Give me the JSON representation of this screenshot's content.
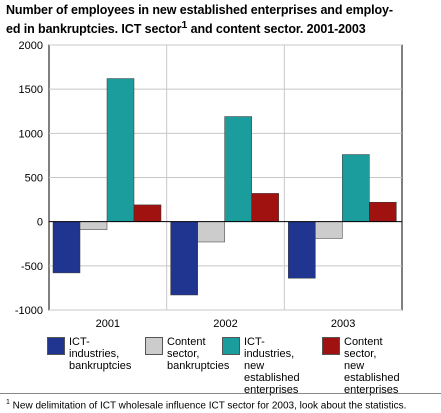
{
  "title": {
    "line1": "Number of employees in new established enterprises and employ-",
    "line2_pre": "ed in bankruptcies. ICT sector",
    "sup": "1",
    "line2_post": " and content sector. 2001-2003"
  },
  "chart_data": {
    "type": "bar",
    "categories": [
      "2001",
      "2002",
      "2003"
    ],
    "series": [
      {
        "name": "ICT-industries, bankruptcies",
        "values": [
          -580,
          -830,
          -640
        ],
        "color": "#1f3590"
      },
      {
        "name": "Content sector, bankruptcies",
        "values": [
          -90,
          -230,
          -190
        ],
        "color": "#cccccc"
      },
      {
        "name": "ICT-industries, new established enterprises",
        "values": [
          1620,
          1190,
          760
        ],
        "color": "#1c9d9d"
      },
      {
        "name": "Content sector, new established enterprises",
        "values": [
          190,
          320,
          220
        ],
        "color": "#a0120f"
      }
    ],
    "ylim": [
      -1000,
      2000
    ],
    "yticks": [
      "2000",
      "1500",
      "1000",
      "500",
      "0",
      "-500",
      "-1000"
    ],
    "grid": true,
    "legend_position": "bottom",
    "xlabel": "",
    "ylabel": ""
  },
  "legend": [
    {
      "label": "ICT-industries,\nbankruptcies",
      "color": "#1f3590"
    },
    {
      "label": "Content\nsector,\nbankruptcies",
      "color": "#cccccc"
    },
    {
      "label": "ICT-\nindustries,\nnew established\nenterprises",
      "color": "#1c9d9d"
    },
    {
      "label": "Content sector,\nnew established\nenterprises",
      "color": "#a0120f"
    }
  ],
  "footnote": {
    "sup": "1",
    "text": " New delimitation of ICT wholesale influence ICT sector for 2003, look about the statistics."
  }
}
